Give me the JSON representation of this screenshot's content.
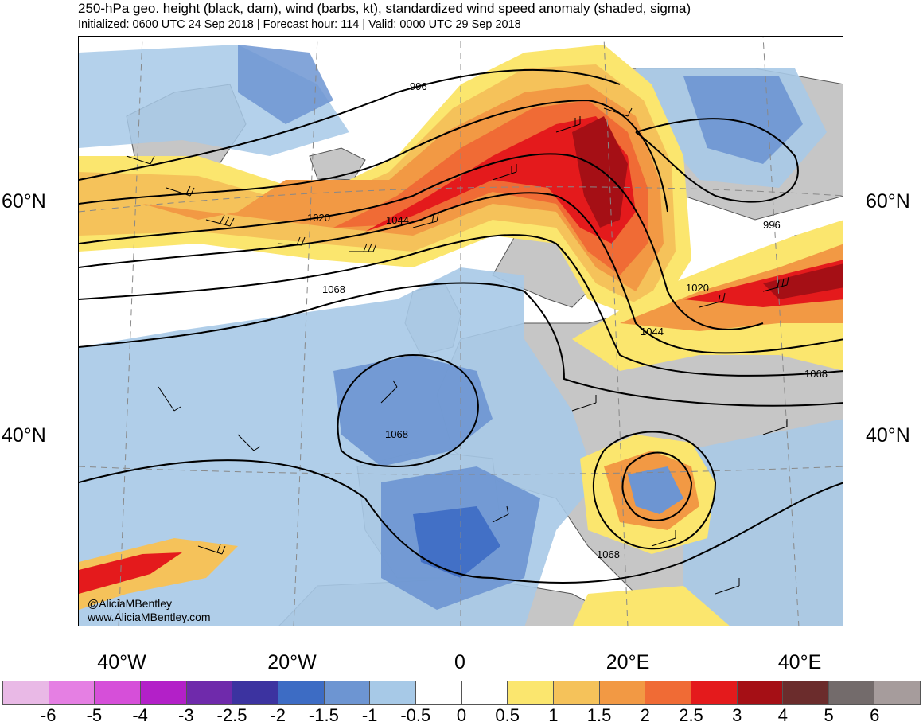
{
  "header": {
    "title": "250-hPa geo. height (black, dam), wind (barbs, kt), standardized wind speed anomaly (shaded, sigma)",
    "subtitle": "Initialized: 0600 UTC 24 Sep 2018 | Forecast hour: 114 | Valid: 0000 UTC 29 Sep 2018"
  },
  "map": {
    "lat_labels": [
      "60°N",
      "40°N"
    ],
    "lon_labels": [
      "40°W",
      "20°W",
      "0",
      "20°E",
      "40°E"
    ],
    "contour_labels": [
      "996",
      "1020",
      "1044",
      "1068",
      "996",
      "1020",
      "1044",
      "1068",
      "1068",
      "1068"
    ],
    "credit": [
      "@AliciaMBentley",
      "www.AliciaMBentley.com"
    ],
    "colors": {
      "land": "#c6c6c6",
      "coast": "#555555"
    }
  },
  "colorbar": {
    "ticks": [
      "-6",
      "-5",
      "-4",
      "-3",
      "-2.5",
      "-2",
      "-1.5",
      "-1",
      "-0.5",
      "0",
      "0.5",
      "1",
      "1.5",
      "2",
      "2.5",
      "3",
      "4",
      "5",
      "6"
    ],
    "colors": [
      "#e9b9e6",
      "#e57fe3",
      "#d64fd9",
      "#b320c8",
      "#6f2aab",
      "#3c33a0",
      "#3d6cc4",
      "#6d95d2",
      "#a7c9e7",
      "#ffffff",
      "#ffffff",
      "#fbe66e",
      "#f5c25a",
      "#f29944",
      "#f06b35",
      "#e41a1c",
      "#a50f15",
      "#6b2c2c",
      "#736b6b",
      "#a69c9c"
    ]
  }
}
